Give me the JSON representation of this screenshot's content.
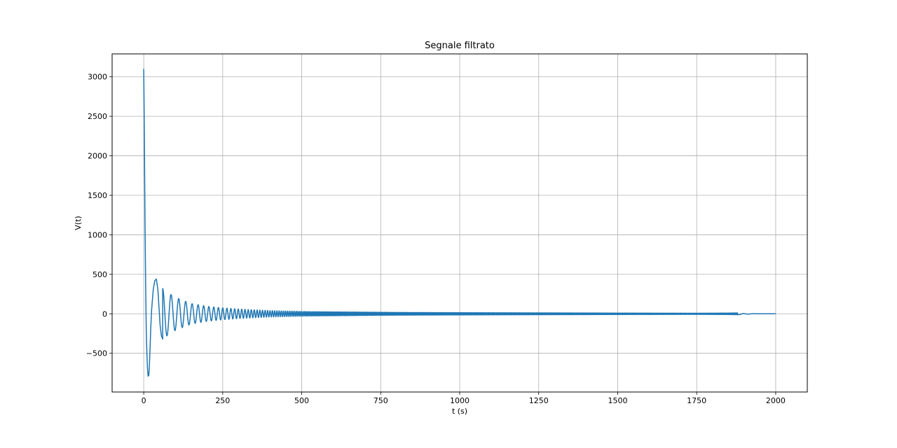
{
  "chart_data": {
    "type": "line",
    "title": "Segnale filtrato",
    "xlabel": "t (s)",
    "ylabel": "V(t)",
    "xlim": [
      -100,
      2100
    ],
    "ylim": [
      -990,
      3290
    ],
    "xticks": [
      0,
      250,
      500,
      750,
      1000,
      1250,
      1500,
      1750,
      2000
    ],
    "xtick_labels": [
      "0",
      "250",
      "500",
      "750",
      "1000",
      "1250",
      "1500",
      "1750",
      "2000"
    ],
    "yticks": [
      -500,
      0,
      500,
      1000,
      1500,
      2000,
      2500,
      3000
    ],
    "ytick_labels": [
      "−500",
      "0",
      "500",
      "1000",
      "1500",
      "2000",
      "2500",
      "3000"
    ],
    "grid": true,
    "series": [
      {
        "color": "#1f77b4",
        "description": "decaying chirp oscillation",
        "x": [
          0,
          2,
          4,
          6,
          8,
          10,
          12,
          14,
          16,
          18,
          20,
          22,
          25,
          30,
          35,
          40,
          45,
          48,
          52,
          56,
          60,
          65,
          70,
          75,
          80,
          85,
          90,
          95,
          100,
          105,
          110,
          115,
          120,
          125,
          130,
          135,
          140,
          145,
          150,
          160,
          170,
          180,
          190,
          200,
          225,
          250,
          300,
          400,
          500,
          600,
          700,
          800,
          900,
          1000,
          1200,
          1400,
          1600,
          1750,
          1800,
          1850,
          1880,
          1900,
          1950,
          2000
        ],
        "y": [
          3100,
          2300,
          1200,
          400,
          -200,
          -500,
          -700,
          -790,
          -780,
          -650,
          -450,
          -200,
          50,
          300,
          420,
          440,
          300,
          100,
          -150,
          -280,
          -320,
          -100,
          150,
          270,
          120,
          -200,
          -230,
          100,
          210,
          80,
          -180,
          0,
          170,
          -140,
          150,
          -120,
          130,
          -110,
          120,
          110,
          100,
          90,
          85,
          80,
          70,
          60,
          50,
          40,
          30,
          25,
          20,
          18,
          16,
          14,
          12,
          10,
          9,
          8,
          8,
          8,
          10,
          -10,
          2,
          0
        ],
        "envelope": {
          "t": [
            0,
            20,
            40,
            60,
            80,
            100,
            150,
            200,
            250,
            300,
            350,
            400,
            500,
            600,
            800,
            1000,
            1500,
            1750,
            1850,
            1880,
            1900,
            1950,
            2000
          ],
          "amp": [
            3100,
            790,
            440,
            320,
            260,
            210,
            130,
            95,
            75,
            60,
            50,
            40,
            30,
            25,
            18,
            15,
            10,
            8,
            10,
            12,
            6,
            2,
            0
          ]
        }
      }
    ]
  }
}
